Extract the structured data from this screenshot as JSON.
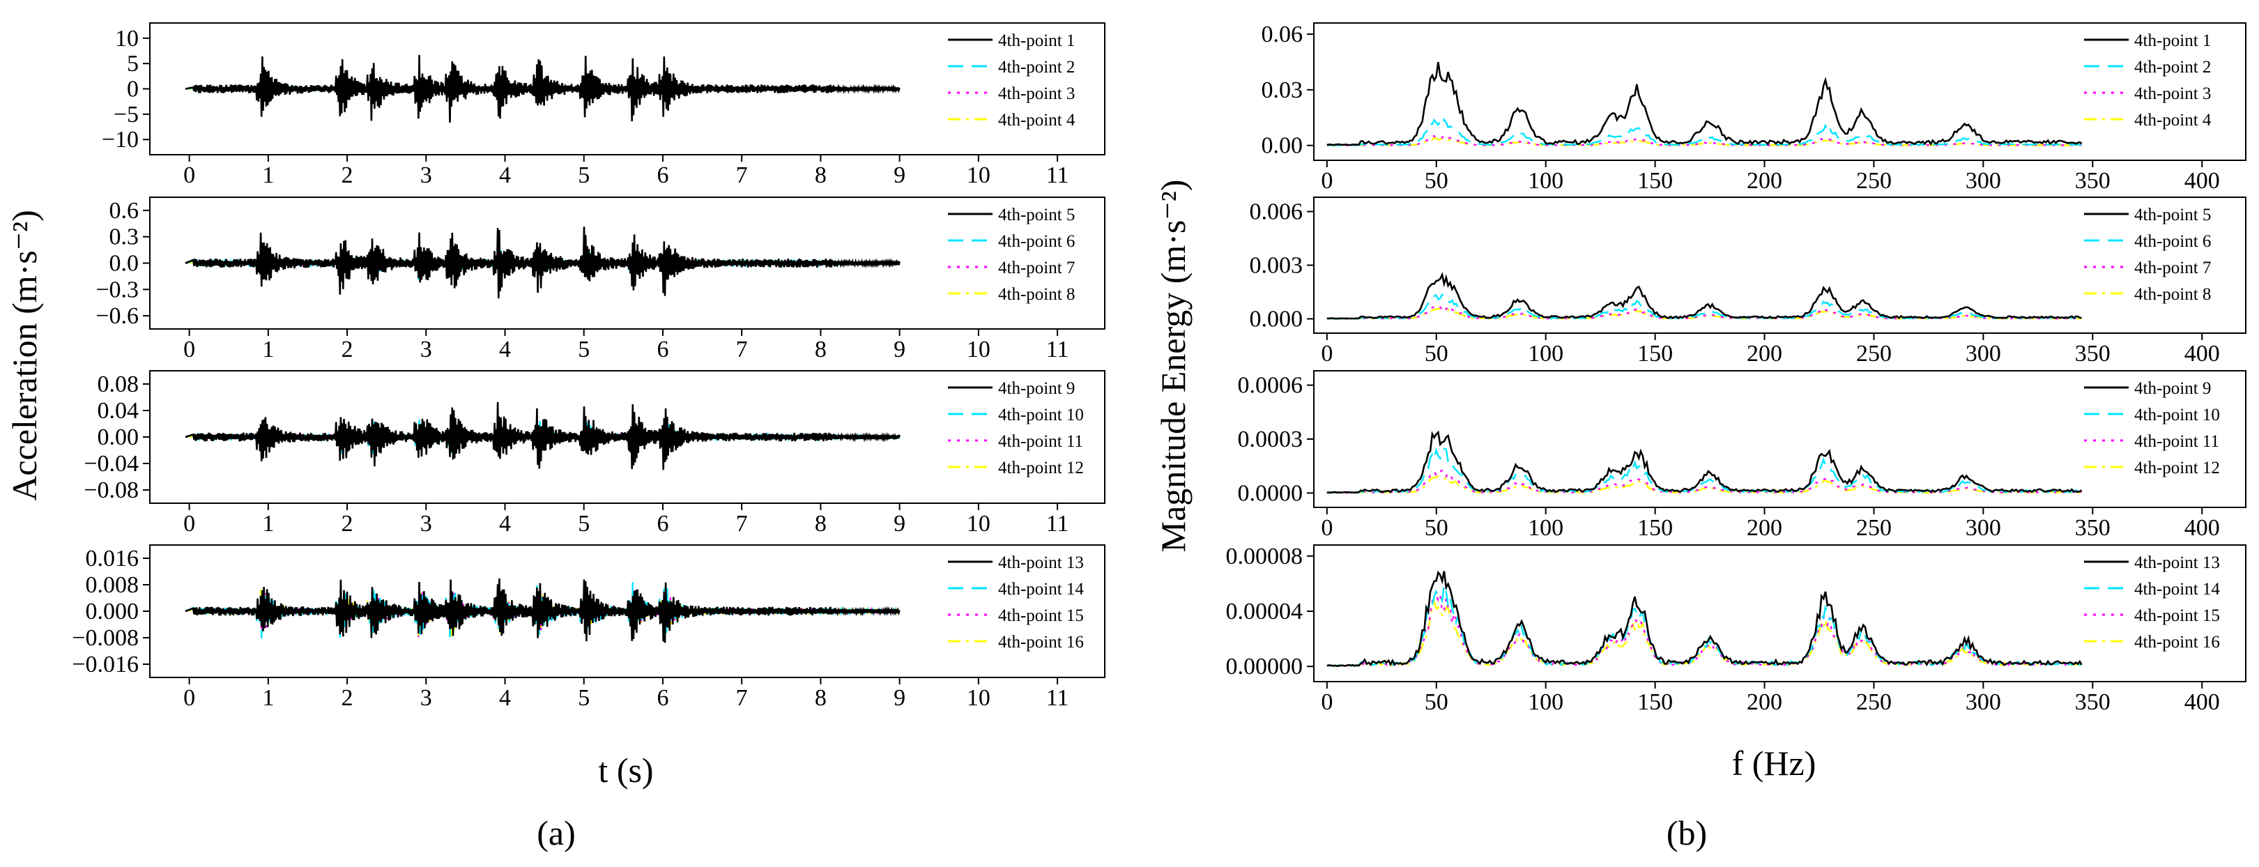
{
  "figure": {
    "label_a": "(a)",
    "label_b": "(b)"
  },
  "colors": {
    "s1": "#000000",
    "s2": "#00e5ff",
    "s3": "#ff00ff",
    "s4": "#ffff00"
  },
  "chart_data": [
    {
      "id": "a",
      "type": "line",
      "xlabel": "t (s)",
      "ylabel": "Acceleration (m·s⁻²)",
      "xlim": [
        -0.5,
        11.6
      ],
      "xticks": [
        0,
        1,
        2,
        3,
        4,
        5,
        6,
        7,
        8,
        9,
        10,
        11
      ],
      "signal_range": [
        0.05,
        9.0
      ],
      "peak_times": [
        0.9,
        1.9,
        2.3,
        2.9,
        3.3,
        3.9,
        4.4,
        5.0,
        5.6,
        6.0
      ],
      "panels": [
        {
          "ylim": [
            -13,
            13
          ],
          "yticks": [
            10,
            5,
            0,
            -5,
            -10
          ],
          "yticklabels": [
            "10",
            "5",
            "0",
            "−5",
            "−10"
          ],
          "series": [
            {
              "name": "4th-point 1",
              "peak": 7.0
            },
            {
              "name": "4th-point 2",
              "peak": 1.5
            },
            {
              "name": "4th-point 3",
              "peak": 0.8
            },
            {
              "name": "4th-point 4",
              "peak": 0.5
            }
          ]
        },
        {
          "ylim": [
            -0.75,
            0.75
          ],
          "yticks": [
            0.6,
            0.3,
            0.0,
            -0.3,
            -0.6
          ],
          "yticklabels": [
            "0.6",
            "0.3",
            "0.0",
            "−0.3",
            "−0.6"
          ],
          "series": [
            {
              "name": "4th-point 5",
              "peak": 0.42
            },
            {
              "name": "4th-point 6",
              "peak": 0.2
            },
            {
              "name": "4th-point 7",
              "peak": 0.1
            },
            {
              "name": "4th-point 8",
              "peak": 0.07
            }
          ]
        },
        {
          "ylim": [
            -0.1,
            0.1
          ],
          "yticks": [
            0.08,
            0.04,
            0.0,
            -0.04,
            -0.08
          ],
          "yticklabels": [
            "0.08",
            "0.04",
            "0.00",
            "−0.04",
            "−0.08"
          ],
          "series": [
            {
              "name": "4th-point 9",
              "peak": 0.055
            },
            {
              "name": "4th-point 10",
              "peak": 0.03
            },
            {
              "name": "4th-point 11",
              "peak": 0.015
            },
            {
              "name": "4th-point 12",
              "peak": 0.01
            }
          ]
        },
        {
          "ylim": [
            -0.02,
            0.02
          ],
          "yticks": [
            0.016,
            0.008,
            0.0,
            -0.008,
            -0.016
          ],
          "yticklabels": [
            "0.016",
            "0.008",
            "0.000",
            "−0.008",
            "−0.016"
          ],
          "series": [
            {
              "name": "4th-point 13",
              "peak": 0.011
            },
            {
              "name": "4th-point 14",
              "peak": 0.009
            },
            {
              "name": "4th-point 15",
              "peak": 0.008
            },
            {
              "name": "4th-point 16",
              "peak": 0.008
            }
          ]
        }
      ]
    },
    {
      "id": "b",
      "type": "line",
      "xlabel": "f (Hz)",
      "ylabel": "Magnitude Energy (m·s⁻²)",
      "xlim": [
        -6,
        420
      ],
      "xticks": [
        0,
        50,
        100,
        150,
        200,
        250,
        300,
        350,
        400
      ],
      "signal_range": [
        0,
        345
      ],
      "peaks": [
        [
          50,
          1.0
        ],
        [
          58,
          0.55
        ],
        [
          88,
          0.45
        ],
        [
          130,
          0.35
        ],
        [
          142,
          0.72
        ],
        [
          175,
          0.3
        ],
        [
          228,
          0.75
        ],
        [
          245,
          0.4
        ],
        [
          292,
          0.25
        ]
      ],
      "panels": [
        {
          "ylim": [
            -0.008,
            0.066
          ],
          "yticks": [
            0.06,
            0.03,
            0.0
          ],
          "yticklabels": [
            "0.06",
            "0.03",
            "0.00"
          ],
          "series": [
            {
              "name": "4th-point 1",
              "peak": 0.044
            },
            {
              "name": "4th-point 2",
              "peak": 0.014
            },
            {
              "name": "4th-point 3",
              "peak": 0.005
            },
            {
              "name": "4th-point 4",
              "peak": 0.004
            }
          ]
        },
        {
          "ylim": [
            -0.0008,
            0.0068
          ],
          "yticks": [
            0.006,
            0.003,
            0.0
          ],
          "yticklabels": [
            "0.006",
            "0.003",
            "0.000"
          ],
          "series": [
            {
              "name": "4th-point 5",
              "peak": 0.0024
            },
            {
              "name": "4th-point 6",
              "peak": 0.0013
            },
            {
              "name": "4th-point 7",
              "peak": 0.0007
            },
            {
              "name": "4th-point 8",
              "peak": 0.0006
            }
          ]
        },
        {
          "ylim": [
            -8e-05,
            0.00068
          ],
          "yticks": [
            0.0006,
            0.0003,
            0.0
          ],
          "yticklabels": [
            "0.0006",
            "0.0003",
            "0.0000"
          ],
          "series": [
            {
              "name": "4th-point 9",
              "peak": 0.00034
            },
            {
              "name": "4th-point 10",
              "peak": 0.00024
            },
            {
              "name": "4th-point 11",
              "peak": 0.00012
            },
            {
              "name": "4th-point 12",
              "peak": 9e-05
            }
          ]
        },
        {
          "ylim": [
            -1.1e-05,
            8.8e-05
          ],
          "yticks": [
            8e-05,
            4e-05,
            0.0
          ],
          "yticklabels": [
            "0.00008",
            "0.00004",
            "0.00000"
          ],
          "series": [
            {
              "name": "4th-point 13",
              "peak": 6.9e-05
            },
            {
              "name": "4th-point 14",
              "peak": 6e-05
            },
            {
              "name": "4th-point 15",
              "peak": 5e-05
            },
            {
              "name": "4th-point 16",
              "peak": 4.6e-05
            }
          ]
        }
      ]
    }
  ]
}
